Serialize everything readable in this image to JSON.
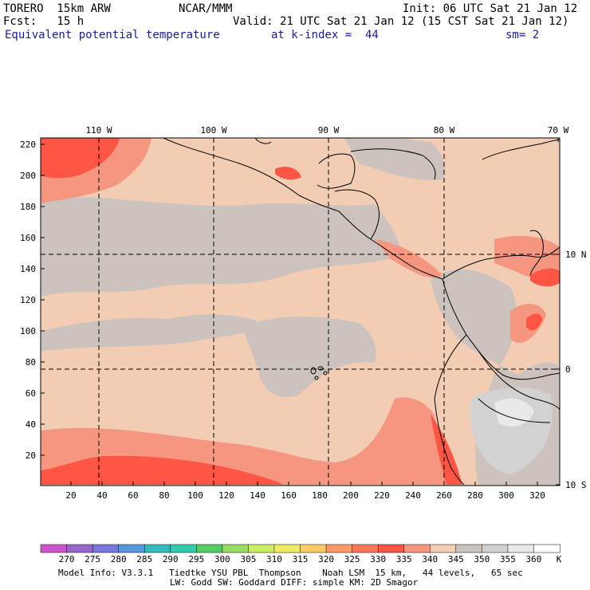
{
  "header": {
    "line1_left": "TORERO  15km ARW",
    "line1_mid": "NCAR/MMM",
    "line1_right": "Init: 06 UTC Sat 21 Jan 12",
    "line2_left": "Fcst:   15 h",
    "line2_right": "Valid: 21 UTC Sat 21 Jan 12 (15 CST Sat 21 Jan 12)",
    "field": "Equivalent potential temperature",
    "level": "at k-index =  44",
    "smooth": "sm= 2"
  },
  "map": {
    "top_lon_labels": [
      "110 W",
      "100 W",
      "90 W",
      "80 W",
      "70 W"
    ],
    "right_lat_labels": [
      "10 N",
      "0",
      "10 S"
    ],
    "left_ticks": [
      "220",
      "200",
      "180",
      "160",
      "140",
      "120",
      "100",
      "80",
      "60",
      "40",
      "20"
    ],
    "bottom_ticks": [
      "20",
      "40",
      "60",
      "80",
      "100",
      "120",
      "140",
      "160",
      "180",
      "200",
      "220",
      "240",
      "260",
      "280",
      "300",
      "320"
    ]
  },
  "colorbar": {
    "labels": [
      "270",
      "275",
      "280",
      "285",
      "290",
      "295",
      "300",
      "305",
      "310",
      "315",
      "320",
      "325",
      "330",
      "335",
      "340",
      "345",
      "350",
      "355",
      "360"
    ],
    "unit": "K",
    "colors": [
      "#cc55cc",
      "#9966cc",
      "#7777dd",
      "#5599dd",
      "#33bbbb",
      "#33ccaa",
      "#55cc66",
      "#99dd66",
      "#ccee66",
      "#eeee66",
      "#ffcc66",
      "#ff9966",
      "#ff7755",
      "#ff5544",
      "#f59680",
      "#f2cdb4",
      "#ccc3be",
      "#d2d2d2",
      "#e9e9e9",
      "#ffffff"
    ]
  },
  "footer": {
    "line1": "Model Info: V3.3.1   Tiedtke YSU PBL  Thompson    Noah LSM  15 km,   44 levels,   65 sec",
    "line2": "LW: Godd SW: Goddard DIFF: simple KM: 2D Smagor"
  }
}
